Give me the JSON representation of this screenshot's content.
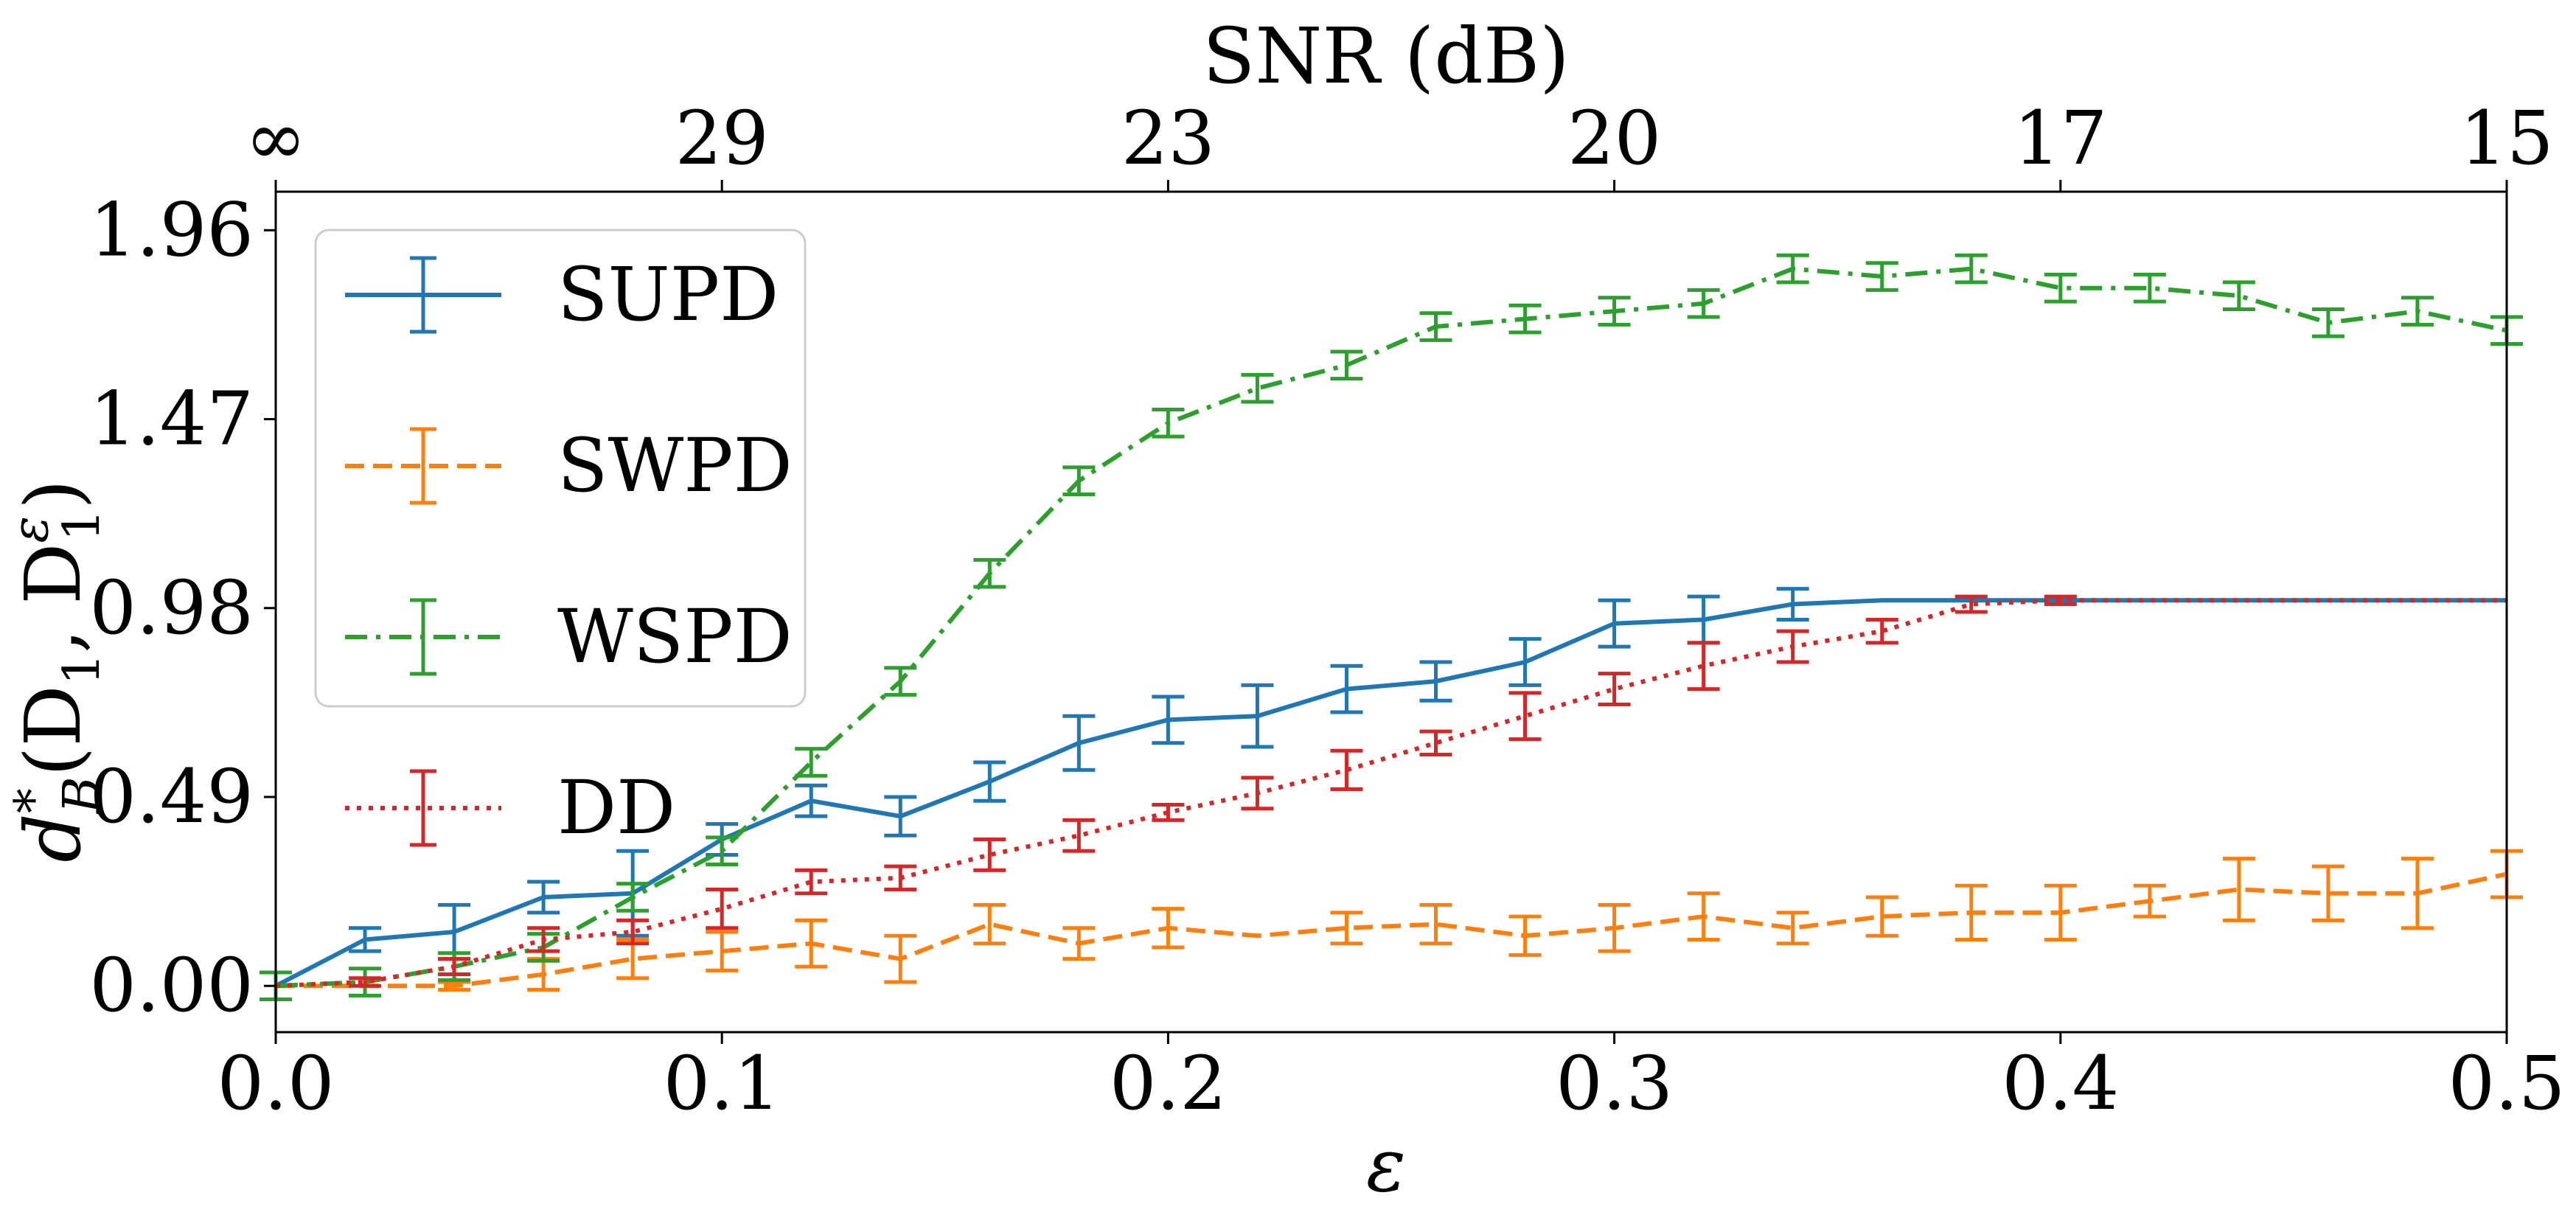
{
  "chart_data": {
    "type": "line",
    "xlabel": "ε",
    "ylabel": "d*B(D1, D1ε)",
    "ylabel_parts": {
      "main": "d",
      "sup": "*",
      "sub": "B",
      "args": "(D",
      "arg1_sub": "1",
      "comma": ", D",
      "arg2_sup": "ε",
      "arg2_sub": "1",
      "close": ")"
    },
    "top_xlabel": "SNR (dB)",
    "xlim": [
      0,
      0.5
    ],
    "ylim": [
      -0.12,
      2.06
    ],
    "x_ticks": [
      0.0,
      0.1,
      0.2,
      0.3,
      0.4,
      0.5
    ],
    "x_tick_labels": [
      "0.0",
      "0.1",
      "0.2",
      "0.3",
      "0.4",
      "0.5"
    ],
    "y_ticks": [
      0.0,
      0.49,
      0.98,
      1.47,
      1.96
    ],
    "y_tick_labels": [
      "0.00",
      "0.49",
      "0.98",
      "1.47",
      "1.96"
    ],
    "top_ticks": [
      0.0,
      0.1,
      0.2,
      0.3,
      0.4,
      0.5
    ],
    "top_tick_labels": [
      "∞",
      "29",
      "23",
      "20",
      "17",
      "15"
    ],
    "legend_position": "upper-left",
    "grid": false,
    "x": [
      0.0,
      0.02,
      0.04,
      0.06,
      0.08,
      0.1,
      0.12,
      0.14,
      0.16,
      0.18,
      0.2,
      0.22,
      0.24,
      0.26,
      0.28,
      0.3,
      0.32,
      0.34,
      0.36,
      0.38,
      0.4,
      0.42,
      0.44,
      0.46,
      0.48,
      0.5
    ],
    "series": [
      {
        "name": "SUPD",
        "color": "#1f77b4",
        "dash": "solid",
        "values": [
          0.0,
          0.12,
          0.14,
          0.23,
          0.24,
          0.38,
          0.48,
          0.44,
          0.53,
          0.63,
          0.69,
          0.7,
          0.77,
          0.79,
          0.84,
          0.94,
          0.95,
          0.99,
          1.0,
          1.0,
          1.0,
          1.0,
          1.0,
          1.0,
          1.0,
          1.0
        ],
        "errors": [
          0.0,
          0.03,
          0.07,
          0.04,
          0.11,
          0.04,
          0.04,
          0.05,
          0.05,
          0.07,
          0.06,
          0.08,
          0.06,
          0.05,
          0.06,
          0.06,
          0.06,
          0.04,
          0.0,
          0.0,
          0.0,
          0.0,
          0.0,
          0.0,
          0.0,
          0.0
        ]
      },
      {
        "name": "SWPD",
        "color": "#ff7f0e",
        "dash": "dashed",
        "values": [
          0.0,
          0.0,
          0.0,
          0.03,
          0.07,
          0.09,
          0.11,
          0.07,
          0.16,
          0.11,
          0.15,
          0.13,
          0.15,
          0.16,
          0.13,
          0.15,
          0.18,
          0.15,
          0.18,
          0.19,
          0.19,
          0.22,
          0.25,
          0.24,
          0.24,
          0.29
        ],
        "errors": [
          0.0,
          0.0,
          0.01,
          0.04,
          0.05,
          0.05,
          0.06,
          0.06,
          0.05,
          0.04,
          0.05,
          0.0,
          0.04,
          0.05,
          0.05,
          0.06,
          0.06,
          0.04,
          0.05,
          0.07,
          0.07,
          0.04,
          0.08,
          0.07,
          0.09,
          0.06
        ]
      },
      {
        "name": "WSPD",
        "color": "#2ca02c",
        "dash": "dashdot",
        "values": [
          0.0,
          0.01,
          0.05,
          0.1,
          0.23,
          0.35,
          0.58,
          0.79,
          1.07,
          1.31,
          1.46,
          1.55,
          1.61,
          1.71,
          1.73,
          1.75,
          1.77,
          1.86,
          1.84,
          1.86,
          1.81,
          1.81,
          1.79,
          1.72,
          1.75,
          1.7
        ]
      },
      {
        "name": "DD",
        "color": "#d62728",
        "dash": "dotted",
        "values": [
          0.0,
          0.01,
          0.05,
          0.12,
          0.14,
          0.2,
          0.27,
          0.28,
          0.34,
          0.39,
          0.45,
          0.5,
          0.56,
          0.63,
          0.7,
          0.77,
          0.83,
          0.88,
          0.92,
          0.99,
          1.0,
          1.0,
          1.0,
          1.0,
          1.0,
          1.0
        ],
        "errors": [
          0.0,
          0.01,
          0.02,
          0.03,
          0.03,
          0.05,
          0.03,
          0.03,
          0.04,
          0.04,
          0.02,
          0.04,
          0.05,
          0.03,
          0.06,
          0.04,
          0.06,
          0.04,
          0.03,
          0.02,
          0.01,
          0.0,
          0.0,
          0.0,
          0.0,
          0.0
        ]
      }
    ]
  }
}
